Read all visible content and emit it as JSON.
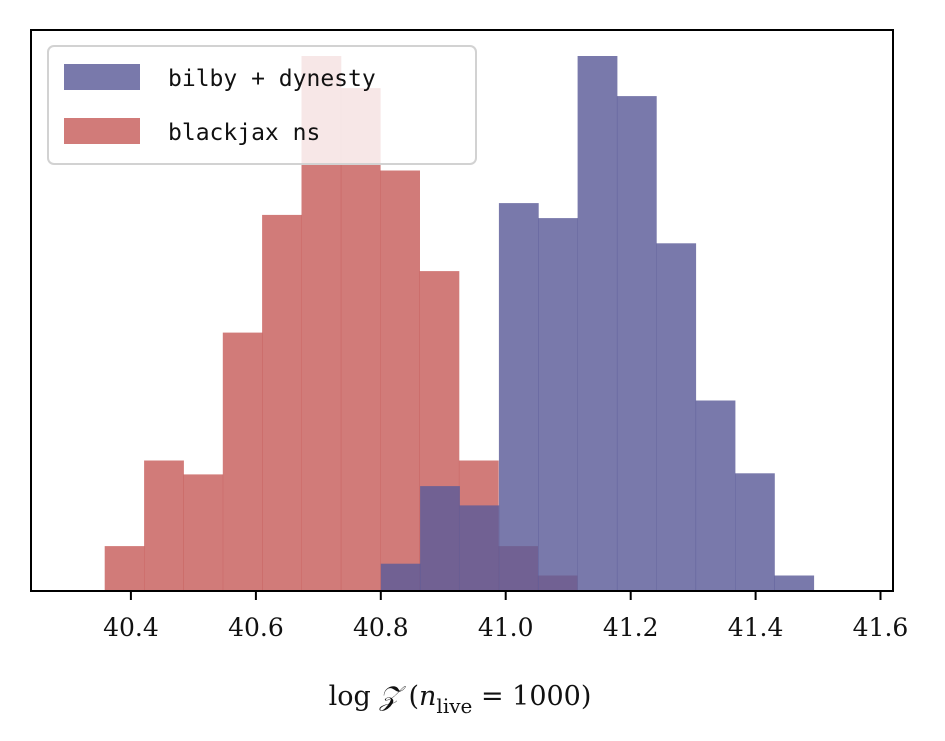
{
  "chart_data": {
    "type": "histogram",
    "xlabel": "log ℤ",
    "xlabel_parts": {
      "prefix": "log ",
      "symbol": "𝒵",
      "paren_open": " (",
      "n": "n",
      "sub": "live",
      "eq": " = 1000)"
    },
    "xlim": [
      40.24,
      41.62
    ],
    "ylim": [
      0,
      1.0
    ],
    "x_ticks": [
      40.4,
      40.6,
      40.8,
      41.0,
      41.2,
      41.4,
      41.6
    ],
    "x_tick_labels": [
      "40.4",
      "40.6",
      "40.8",
      "41.0",
      "41.2",
      "41.4",
      "41.6"
    ],
    "y_ticks_visible": false,
    "legend_position": "top-left",
    "series": [
      {
        "name": "bilby + dynesty",
        "color": "#5b5b99",
        "opacity": 0.82,
        "bins": [
          [
            40.8,
            40.863,
            0.051
          ],
          [
            40.863,
            40.926,
            0.196
          ],
          [
            40.926,
            40.989,
            0.16
          ],
          [
            40.989,
            41.052,
            0.725
          ],
          [
            41.052,
            41.115,
            0.697
          ],
          [
            41.115,
            41.178,
            1.0
          ],
          [
            41.178,
            41.241,
            0.925
          ],
          [
            41.241,
            41.304,
            0.65
          ],
          [
            41.304,
            41.367,
            0.356
          ],
          [
            41.367,
            41.43,
            0.22
          ],
          [
            41.43,
            41.493,
            0.029
          ]
        ]
      },
      {
        "name": "blackjax ns",
        "color": "#c65a58",
        "opacity": 0.8,
        "bins": [
          [
            40.358,
            40.421,
            0.084
          ],
          [
            40.421,
            40.484,
            0.244
          ],
          [
            40.484,
            40.547,
            0.218
          ],
          [
            40.547,
            40.61,
            0.483
          ],
          [
            40.61,
            40.673,
            0.703
          ],
          [
            40.673,
            40.736,
            1.0
          ],
          [
            40.736,
            40.799,
            0.94
          ],
          [
            40.799,
            40.862,
            0.786
          ],
          [
            40.862,
            40.925,
            0.598
          ],
          [
            40.925,
            40.988,
            0.244
          ],
          [
            40.988,
            41.051,
            0.084
          ],
          [
            41.051,
            41.114,
            0.029
          ]
        ]
      }
    ]
  }
}
